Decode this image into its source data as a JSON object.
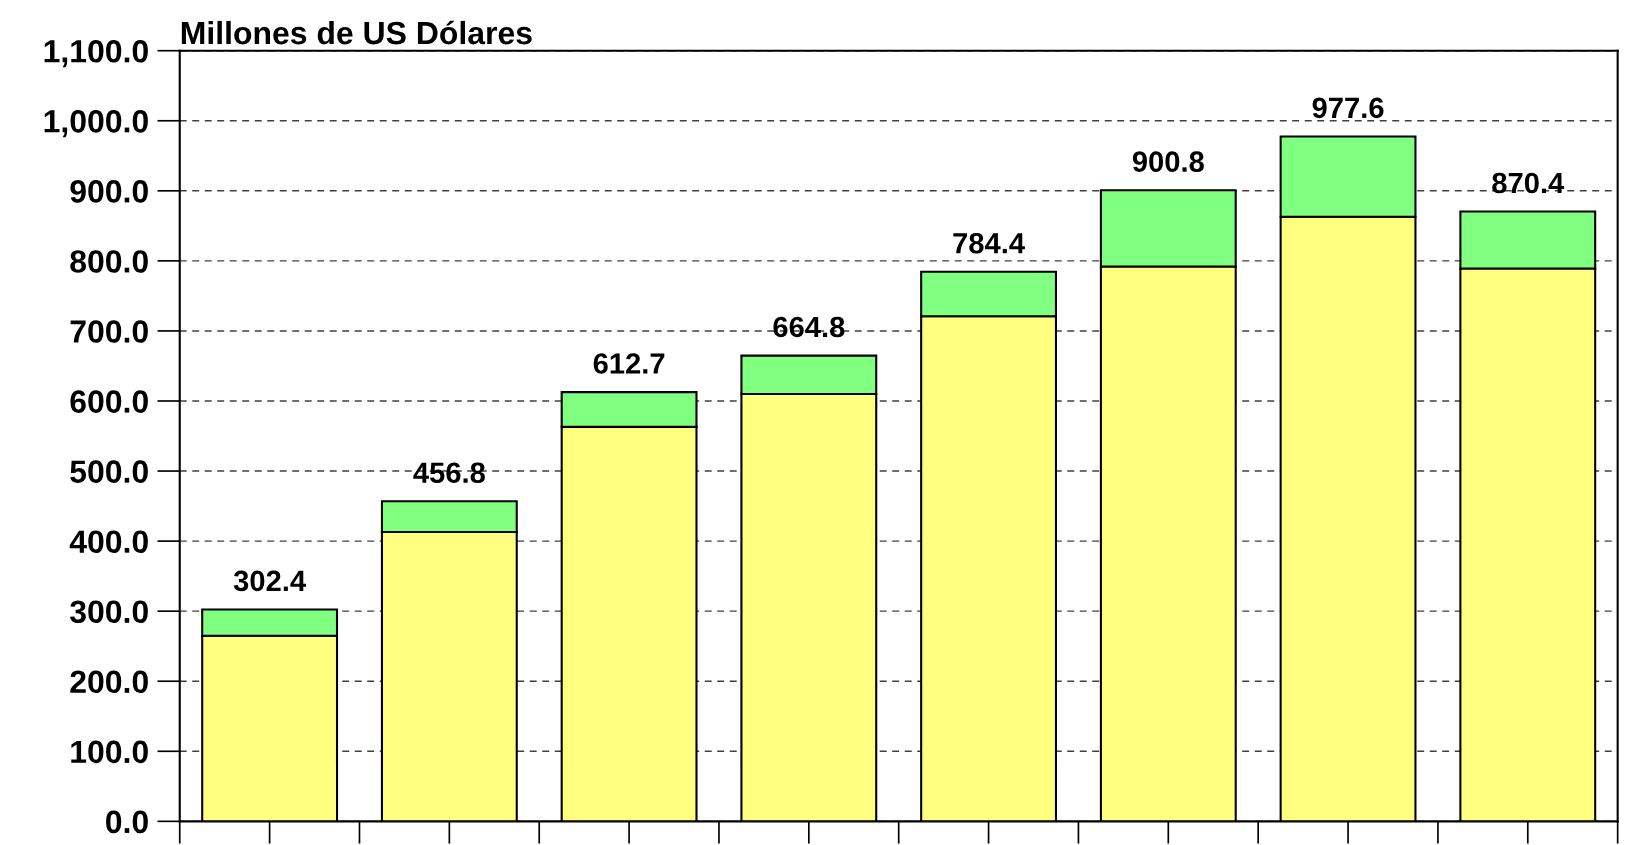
{
  "chart_data": {
    "type": "bar",
    "title": "Millones de US Dólares",
    "categories": [
      null,
      null,
      null,
      null,
      null,
      null,
      null,
      null
    ],
    "stacked": true,
    "series": [
      {
        "color": "#ffff80",
        "values": [
          265,
          413,
          563,
          610,
          721,
          792,
          863,
          789
        ]
      },
      {
        "color": "#80ff80",
        "values": [
          37.4,
          43.8,
          49.7,
          54.8,
          63.4,
          108.8,
          114.6,
          81.4
        ]
      }
    ],
    "totals": [
      "302.4",
      "456.8",
      "612.7",
      "664.8",
      "784.4",
      "900.8",
      "977.6",
      "870.4"
    ],
    "ylim": [
      0,
      1100
    ],
    "yticks": [
      {
        "value": 0,
        "label": "0.0"
      },
      {
        "value": 100,
        "label": "100.0"
      },
      {
        "value": 200,
        "label": "200.0"
      },
      {
        "value": 300,
        "label": "300.0"
      },
      {
        "value": 400,
        "label": "400.0"
      },
      {
        "value": 500,
        "label": "500.0"
      },
      {
        "value": 600,
        "label": "600.0"
      },
      {
        "value": 700,
        "label": "700.0"
      },
      {
        "value": 800,
        "label": "800.0"
      },
      {
        "value": 900,
        "label": "900.0"
      },
      {
        "value": 1000,
        "label": "1,000.0"
      },
      {
        "value": 1100,
        "label": "1,100.0"
      }
    ],
    "grid": "y"
  }
}
